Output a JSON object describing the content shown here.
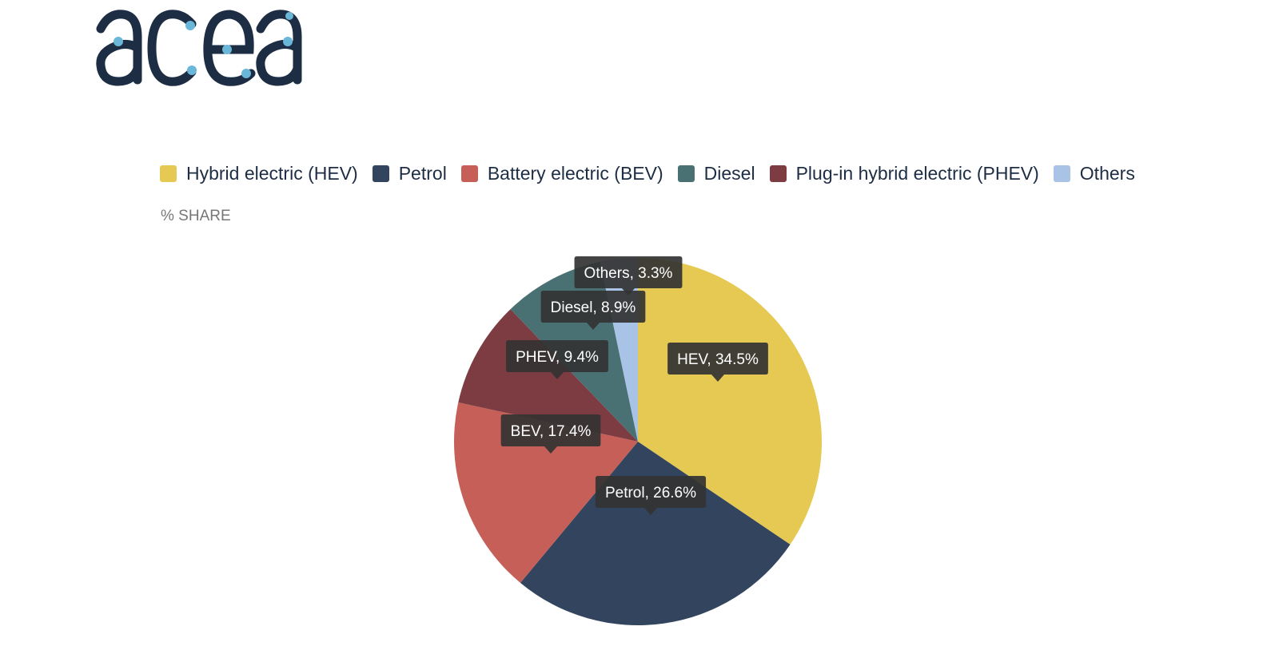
{
  "brand": {
    "logo_text": "acea",
    "logo_color": "#1d2d44",
    "dot_color": "#6bb7d9"
  },
  "unit_label": "% SHARE",
  "chart_data": {
    "type": "pie",
    "title": "",
    "legend_placement": "top",
    "legend": [
      {
        "label": "Hybrid electric (HEV)",
        "color": "#e5c952"
      },
      {
        "label": "Petrol",
        "color": "#33445f"
      },
      {
        "label": "Battery electric (BEV)",
        "color": "#c65f58"
      },
      {
        "label": "Diesel",
        "color": "#497073"
      },
      {
        "label": "Plug-in hybrid electric (PHEV)",
        "color": "#7d3b42"
      },
      {
        "label": "Others",
        "color": "#a9c3e6"
      }
    ],
    "slices": [
      {
        "short": "HEV",
        "value": 34.5,
        "color": "#e5c952",
        "label": "HEV, 34.5%"
      },
      {
        "short": "Petrol",
        "value": 26.6,
        "color": "#33445f",
        "label": "Petrol, 26.6%"
      },
      {
        "short": "BEV",
        "value": 17.4,
        "color": "#c65f58",
        "label": "BEV, 17.4%"
      },
      {
        "short": "PHEV",
        "value": 9.4,
        "color": "#7d3b42",
        "label": "PHEV, 9.4%"
      },
      {
        "short": "Diesel",
        "value": 8.9,
        "color": "#497073",
        "label": "Diesel, 8.9%"
      },
      {
        "short": "Others",
        "value": 3.3,
        "color": "#a9c3e6",
        "label": "Others, 3.3%"
      }
    ]
  }
}
